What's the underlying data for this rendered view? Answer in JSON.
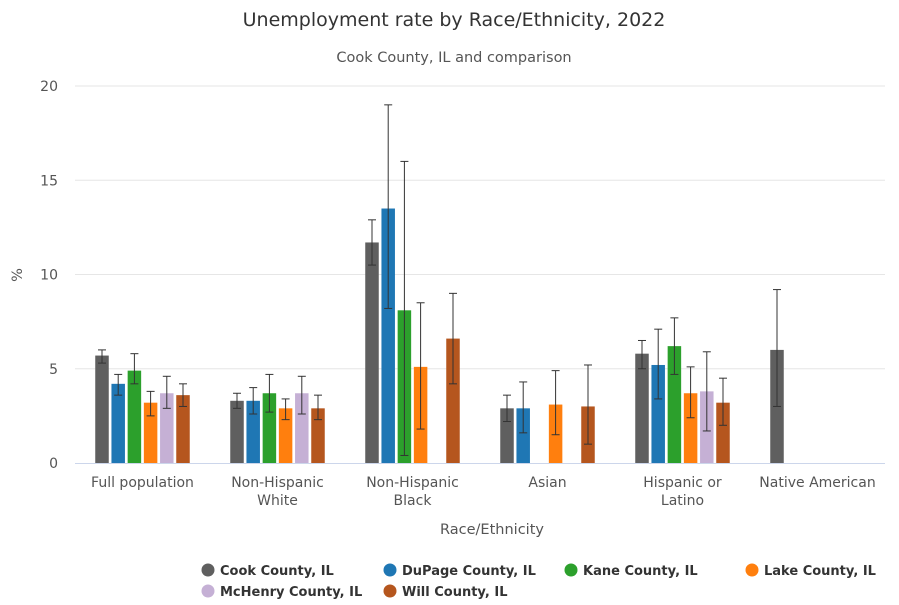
{
  "chart_data": {
    "type": "bar",
    "title": "Unemployment rate by Race/Ethnicity, 2022",
    "subtitle": "Cook County, IL and comparison",
    "xlabel": "Race/Ethnicity",
    "ylabel": "%",
    "ylim": [
      0,
      20
    ],
    "yticks": [
      "0",
      "5",
      "10",
      "15",
      "20"
    ],
    "grid": true,
    "legend_position": "bottom",
    "categories": [
      [
        "Full population"
      ],
      [
        "Non-Hispanic",
        "White"
      ],
      [
        "Non-Hispanic",
        "Black"
      ],
      [
        "Asian"
      ],
      [
        "Hispanic or",
        "Latino"
      ],
      [
        "Native American"
      ]
    ],
    "series": [
      {
        "name": "Cook County, IL",
        "color": "#5f5f5f",
        "values": [
          5.7,
          3.3,
          11.7,
          2.9,
          5.8,
          6.0
        ],
        "low": [
          5.3,
          2.9,
          10.5,
          2.2,
          5.0,
          3.0
        ],
        "high": [
          6.0,
          3.7,
          12.9,
          3.6,
          6.5,
          9.2
        ]
      },
      {
        "name": "DuPage County, IL",
        "color": "#1f77b4",
        "values": [
          4.2,
          3.3,
          13.5,
          2.9,
          5.2,
          null
        ],
        "low": [
          3.6,
          2.6,
          8.2,
          1.6,
          3.4,
          null
        ],
        "high": [
          4.7,
          4.0,
          19.0,
          4.3,
          7.1,
          null
        ]
      },
      {
        "name": "Kane County, IL",
        "color": "#2ca02c",
        "values": [
          4.9,
          3.7,
          8.1,
          null,
          6.2,
          null
        ],
        "low": [
          4.2,
          2.7,
          0.4,
          null,
          4.7,
          null
        ],
        "high": [
          5.8,
          4.7,
          16.0,
          null,
          7.7,
          null
        ]
      },
      {
        "name": "Lake County, IL",
        "color": "#ff7f0e",
        "values": [
          3.2,
          2.9,
          5.1,
          3.1,
          3.7,
          null
        ],
        "low": [
          2.5,
          2.3,
          1.8,
          1.5,
          2.4,
          null
        ],
        "high": [
          3.8,
          3.4,
          8.5,
          4.9,
          5.1,
          null
        ]
      },
      {
        "name": "McHenry County, IL",
        "color": "#c5b0d5",
        "values": [
          3.7,
          3.7,
          null,
          null,
          3.8,
          null
        ],
        "low": [
          2.9,
          2.6,
          null,
          null,
          1.7,
          null
        ],
        "high": [
          4.6,
          4.6,
          null,
          null,
          5.9,
          null
        ]
      },
      {
        "name": "Will County, IL",
        "color": "#b5561e",
        "values": [
          3.6,
          2.9,
          6.6,
          3.0,
          3.2,
          null
        ],
        "low": [
          3.0,
          2.3,
          4.2,
          1.0,
          2.0,
          null
        ],
        "high": [
          4.2,
          3.6,
          9.0,
          5.2,
          4.5,
          null
        ]
      }
    ]
  }
}
